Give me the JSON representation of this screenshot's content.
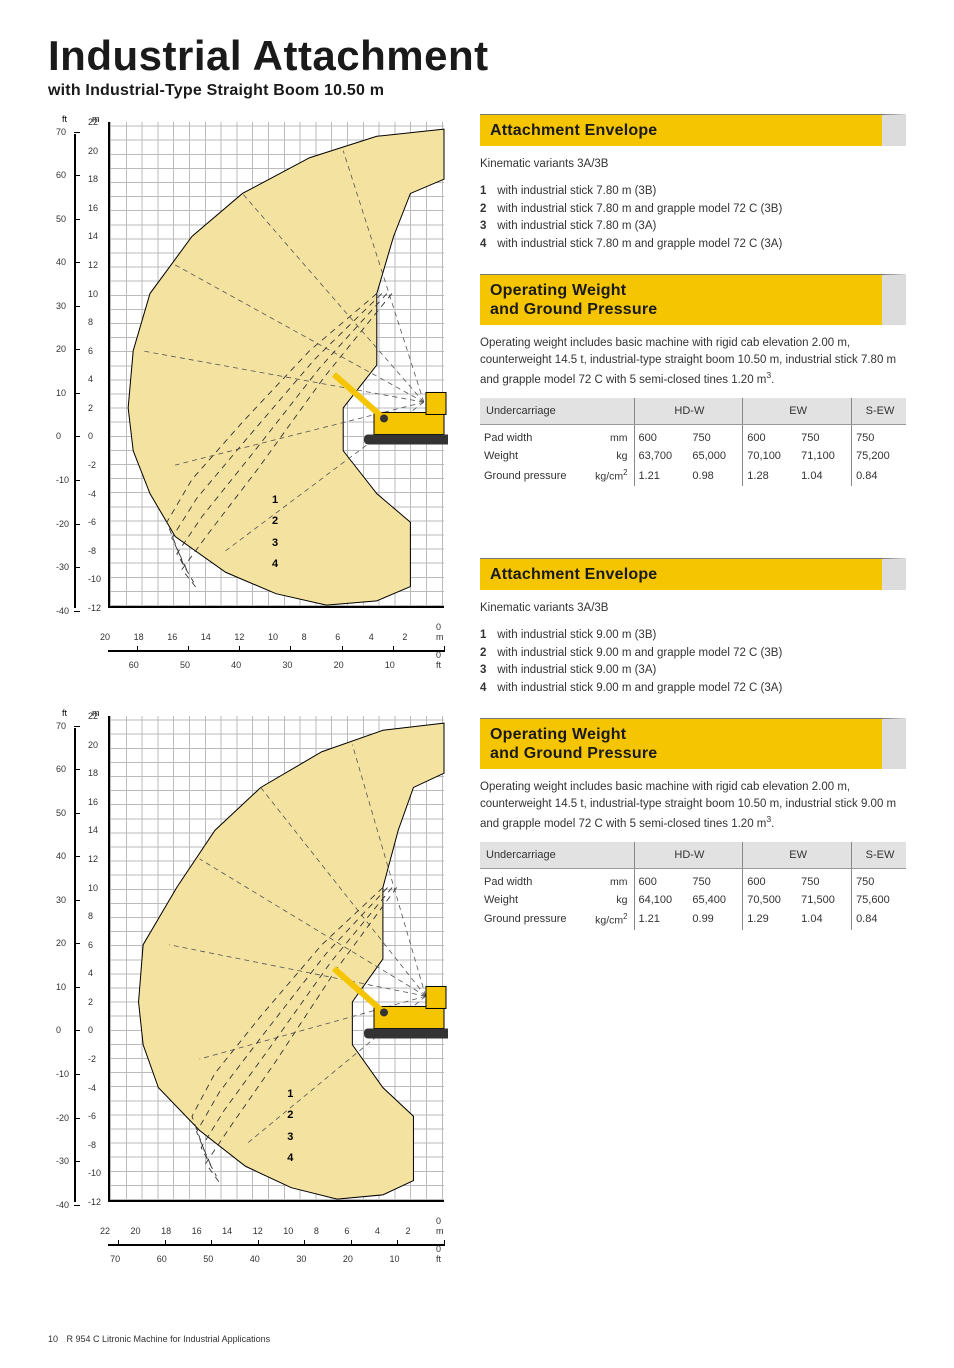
{
  "title": "Industrial Attachment",
  "subtitle": "with Industrial-Type Straight Boom 10.50 m",
  "footer": {
    "page_num": "10",
    "text": "R 954 C Litronic Machine for Industrial Applications"
  },
  "chart_style": {
    "envelope_fill": "#f4e2a0",
    "envelope_stroke": "#000000",
    "dash_curve_stroke": "#333333",
    "machine_body": "#f4c500",
    "machine_dark": "#333333",
    "grid_color": "#bbbbbb",
    "axis_color": "#000000",
    "background": "#ffffff"
  },
  "chart1": {
    "y_m_range": [
      -12,
      22
    ],
    "y_m_step": 2,
    "y_ft_ticks": [
      70,
      60,
      50,
      40,
      30,
      20,
      10,
      0,
      -10,
      -20,
      -30,
      -40
    ],
    "x_m_range": [
      0,
      20
    ],
    "x_m_step": 2,
    "x_ft_ticks": [
      60,
      50,
      40,
      30,
      20,
      10,
      0
    ],
    "x_m_labels": [
      "20",
      "18",
      "16",
      "14",
      "12",
      "10",
      "8",
      "6",
      "4",
      "2",
      "0 m"
    ],
    "x_ft_labels": [
      "60",
      "50",
      "40",
      "30",
      "20",
      "10",
      "0 ft"
    ],
    "curve_labels": [
      "1",
      "2",
      "3",
      "4"
    ],
    "unit_m": "m",
    "unit_ft": "ft"
  },
  "chart2": {
    "y_m_range": [
      -12,
      22
    ],
    "y_m_step": 2,
    "y_ft_ticks": [
      70,
      60,
      50,
      40,
      30,
      20,
      10,
      0,
      -10,
      -20,
      -30,
      -40
    ],
    "x_m_range": [
      0,
      22
    ],
    "x_m_step": 2,
    "x_ft_ticks": [
      70,
      60,
      50,
      40,
      30,
      20,
      10,
      0
    ],
    "x_m_labels": [
      "22",
      "20",
      "18",
      "16",
      "14",
      "12",
      "10",
      "8",
      "6",
      "4",
      "2",
      "0 m"
    ],
    "x_ft_labels": [
      "70",
      "60",
      "50",
      "40",
      "30",
      "20",
      "10",
      "0 ft"
    ],
    "curve_labels": [
      "1",
      "2",
      "3",
      "4"
    ],
    "unit_m": "m",
    "unit_ft": "ft"
  },
  "sections": {
    "envelope_header": "Attachment Envelope",
    "weight_header": "Operating Weight\nand Ground Pressure",
    "kinematic_intro": "Kinematic variants 3A/3B",
    "variants_780": [
      "with industrial stick 7.80 m (3B)",
      "with industrial stick 7.80 m and grapple model 72 C (3B)",
      "with industrial stick 7.80 m (3A)",
      "with industrial stick 7.80 m and grapple model 72 C (3A)"
    ],
    "variants_900": [
      "with industrial stick 9.00 m (3B)",
      "with industrial stick 9.00 m and grapple model 72 C (3B)",
      "with industrial stick 9.00 m (3A)",
      "with industrial stick 9.00 m and grapple model 72 C (3A)"
    ],
    "weight_desc_780": "Operating weight includes basic machine with rigid cab elevation 2.00 m, counterweight 14.5 t, industrial-type straight boom 10.50 m, industrial stick 7.80 m and grapple model 72 C with 5 semi-closed tines 1.20 m³.",
    "weight_desc_900": "Operating weight includes basic machine with rigid cab elevation 2.00 m, counterweight 14.5 t, industrial-type straight boom 10.50 m, industrial stick 9.00 m and grapple model 72 C with 5 semi-closed tines 1.20 m³."
  },
  "table1": {
    "header_label": "Undercarriage",
    "groups": [
      "HD-W",
      "EW",
      "S-EW"
    ],
    "rows": [
      {
        "label": "Pad width",
        "unit": "mm",
        "vals": [
          "600",
          "750",
          "600",
          "750",
          "750"
        ]
      },
      {
        "label": "Weight",
        "unit": "kg",
        "vals": [
          "63,700",
          "65,000",
          "70,100",
          "71,100",
          "75,200"
        ]
      },
      {
        "label": "Ground pressure",
        "unit": "kg/cm²",
        "vals": [
          "1.21",
          "0.98",
          "1.28",
          "1.04",
          "0.84"
        ]
      }
    ]
  },
  "table2": {
    "header_label": "Undercarriage",
    "groups": [
      "HD-W",
      "EW",
      "S-EW"
    ],
    "rows": [
      {
        "label": "Pad width",
        "unit": "mm",
        "vals": [
          "600",
          "750",
          "600",
          "750",
          "750"
        ]
      },
      {
        "label": "Weight",
        "unit": "kg",
        "vals": [
          "64,100",
          "65,400",
          "70,500",
          "71,500",
          "75,600"
        ]
      },
      {
        "label": "Ground pressure",
        "unit": "kg/cm²",
        "vals": [
          "1.21",
          "0.99",
          "1.29",
          "1.04",
          "0.84"
        ]
      }
    ]
  }
}
